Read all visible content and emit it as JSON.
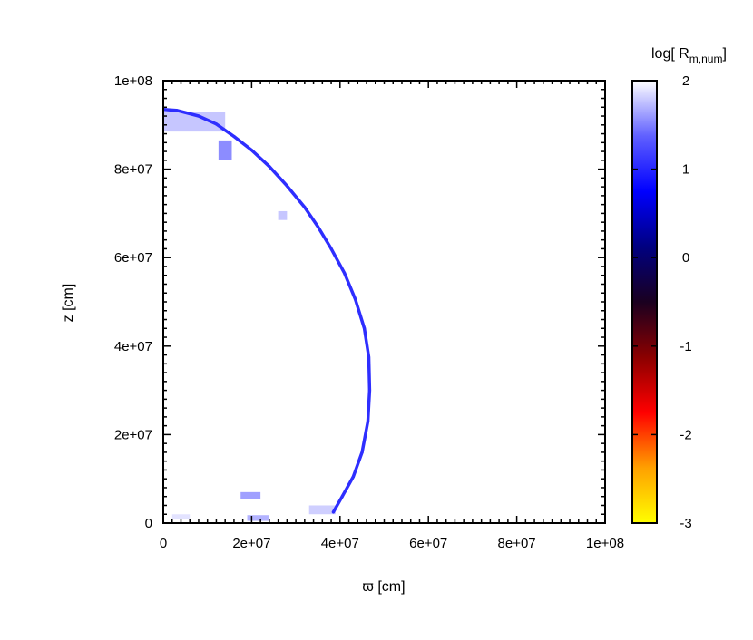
{
  "chart_data": {
    "type": "heatmap",
    "xlabel": "ϖ [cm]",
    "ylabel": "z [cm]",
    "colorbar_label": {
      "prefix": "log[ R",
      "subscript": "m,num",
      "suffix": "]"
    },
    "xlim": [
      0,
      100000000
    ],
    "ylim": [
      0,
      100000000
    ],
    "x_ticks": [
      "0",
      "2e+07",
      "4e+07",
      "6e+07",
      "8e+07",
      "1e+08"
    ],
    "y_ticks": [
      "0",
      "2e+07",
      "4e+07",
      "6e+07",
      "8e+07",
      "1e+08"
    ],
    "colorbar": {
      "range": [
        -3,
        2
      ],
      "ticks": [
        "2",
        "1",
        "0",
        "-1",
        "-2",
        "-3"
      ],
      "colors": [
        "#ffff00",
        "#ffa000",
        "#ff0000",
        "#8b0000",
        "#1a0020",
        "#000080",
        "#0000ff",
        "#6060ff",
        "#ffffff"
      ]
    },
    "grid": false,
    "front_curve": {
      "x": [
        0,
        3000000,
        8000000,
        12000000,
        16000000,
        20000000,
        24000000,
        28000000,
        32000000,
        35000000,
        38000000,
        41000000,
        43500000,
        45500000,
        46500000,
        46700000,
        46300000,
        45000000,
        43000000,
        40500000,
        38500000
      ],
      "y": [
        93500000,
        93300000,
        92000000,
        90200000,
        87400000,
        84300000,
        80600000,
        76200000,
        71400000,
        67000000,
        62000000,
        56500000,
        50500000,
        44000000,
        37500000,
        30000000,
        23000000,
        16000000,
        10500000,
        6000000,
        2500000
      ],
      "value": 1.05
    },
    "faint_patches": [
      {
        "x": [
          0,
          14000000
        ],
        "y": [
          88500000,
          93000000
        ],
        "value": 1.7
      },
      {
        "x": [
          12500000,
          15500000
        ],
        "y": [
          82000000,
          86500000
        ],
        "value": 1.4
      },
      {
        "x": [
          26000000,
          28000000
        ],
        "y": [
          68500000,
          70500000
        ],
        "value": 1.7
      },
      {
        "x": [
          17500000,
          22000000
        ],
        "y": [
          5500000,
          7000000
        ],
        "value": 1.5
      },
      {
        "x": [
          19000000,
          24000000
        ],
        "y": [
          500000,
          1800000
        ],
        "value": 1.6
      },
      {
        "x": [
          33000000,
          39000000
        ],
        "y": [
          2000000,
          4000000
        ],
        "value": 1.75
      },
      {
        "x": [
          2000000,
          6000000
        ],
        "y": [
          1000000,
          2000000
        ],
        "value": 1.85
      }
    ]
  }
}
